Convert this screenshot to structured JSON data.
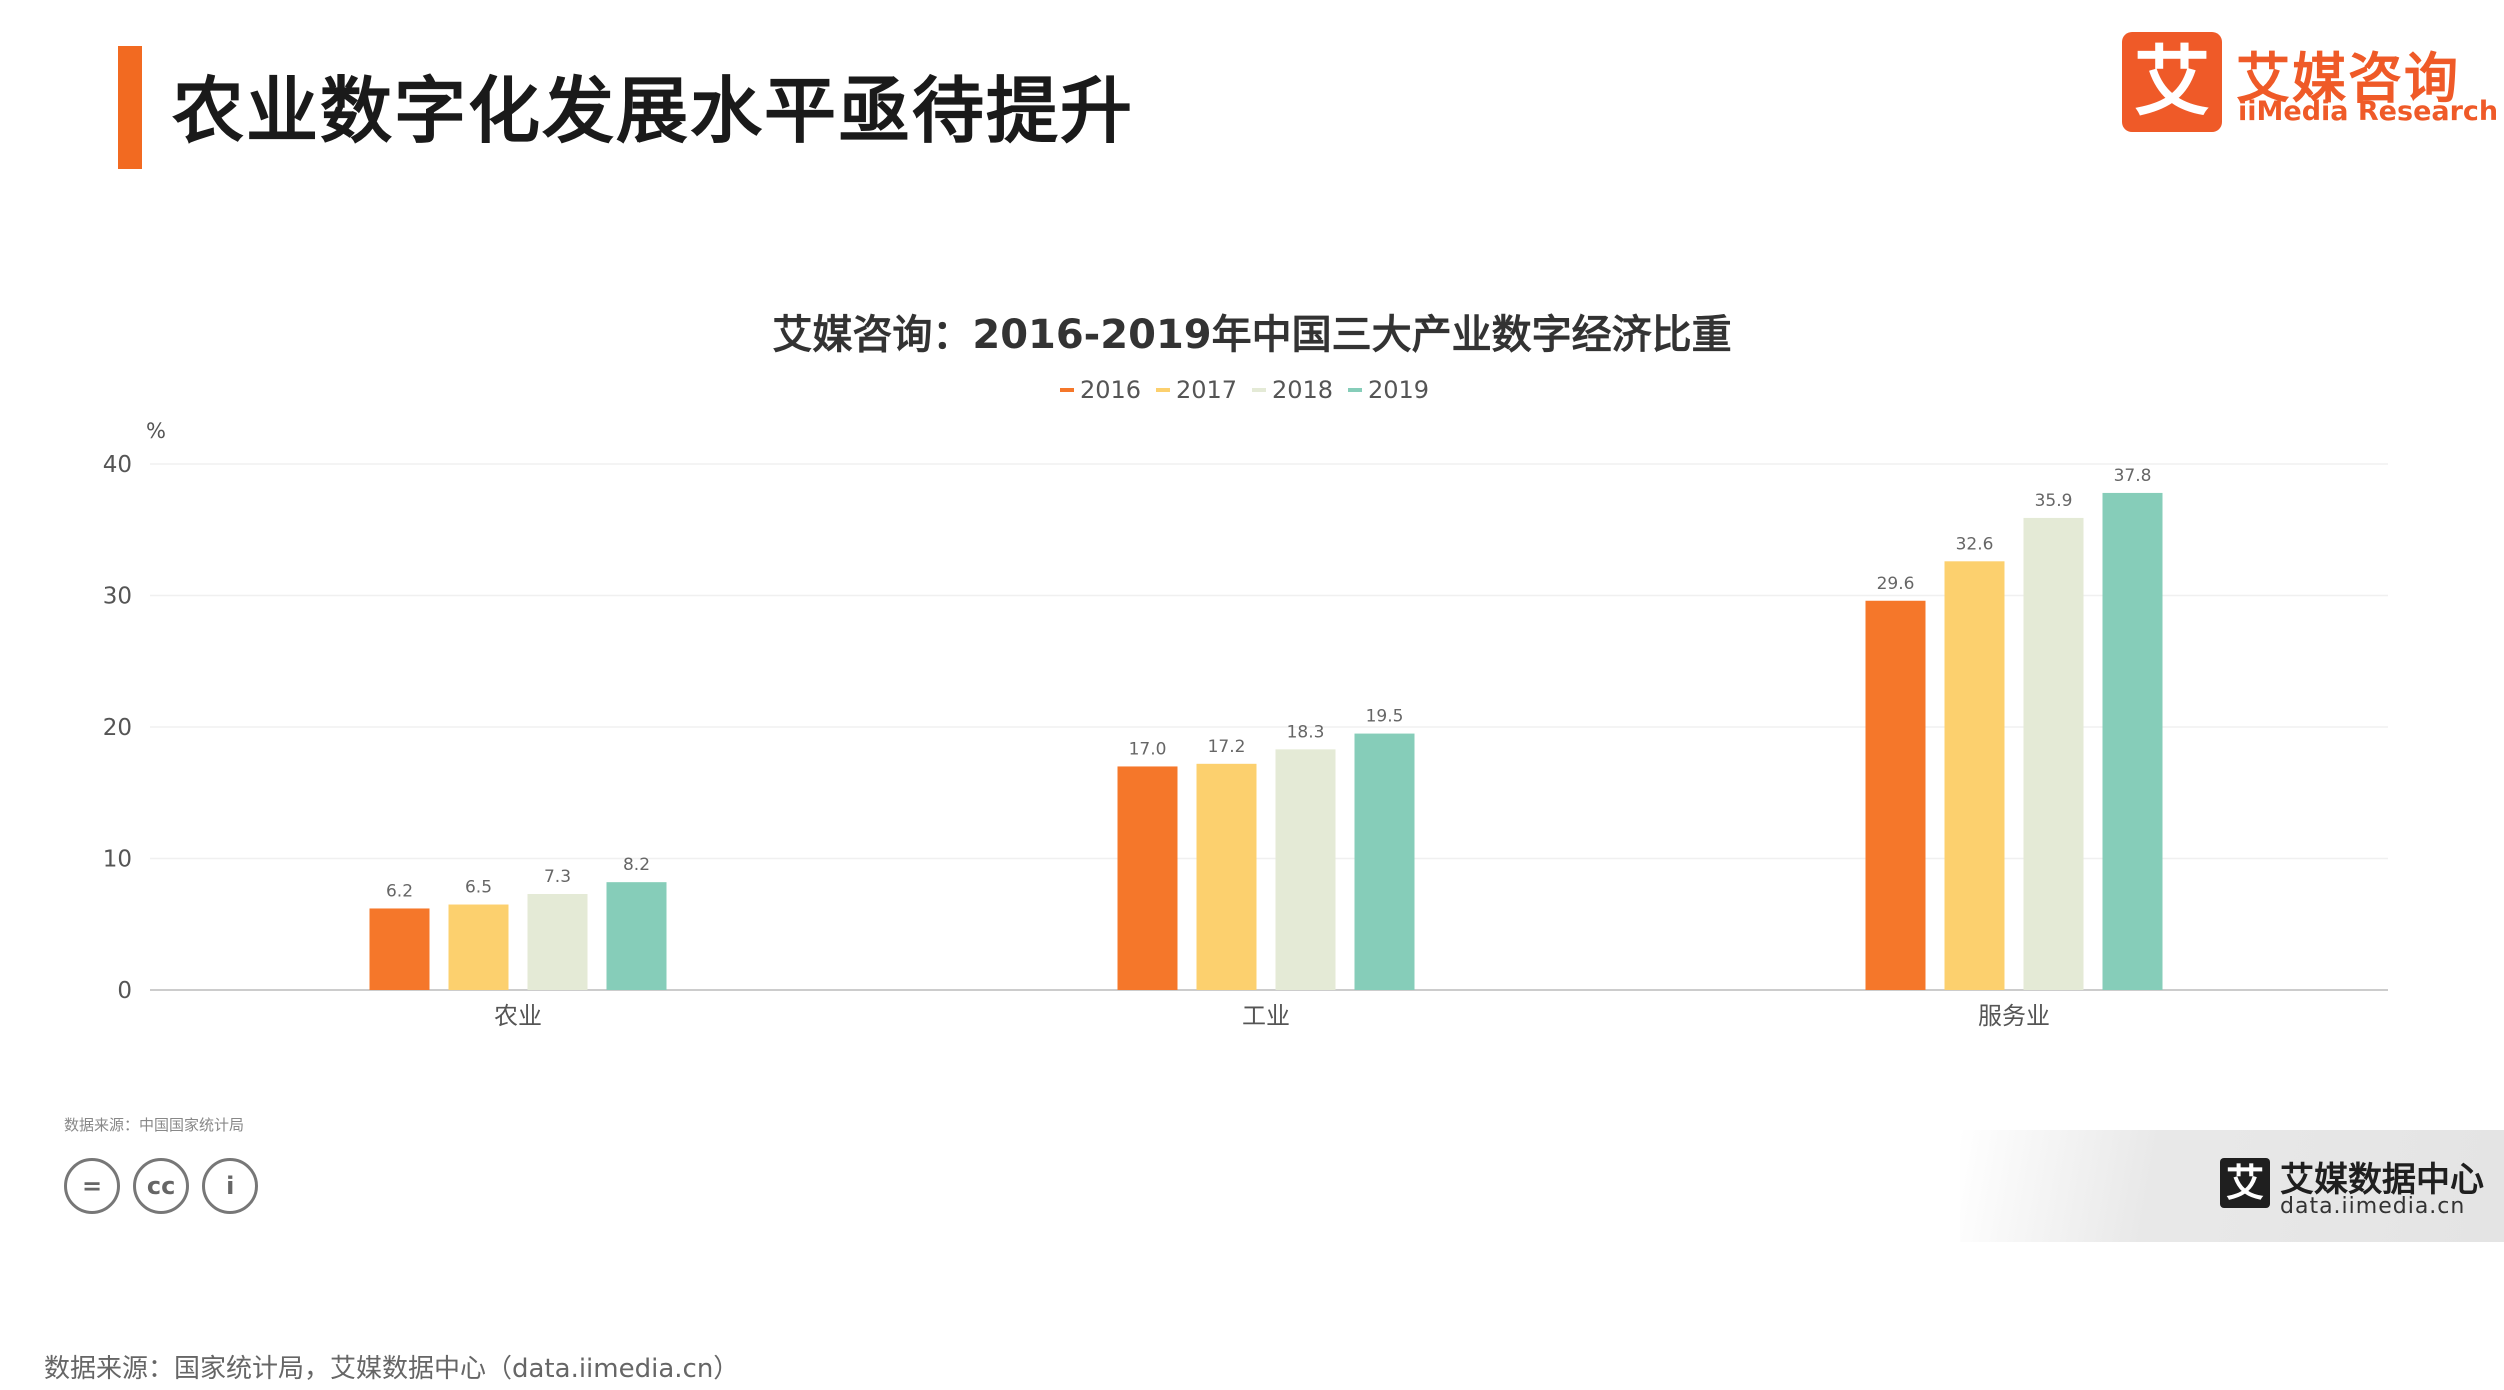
{
  "header": {
    "title": "农业数字化发展水平亟待提升",
    "logo_cn": "艾媒咨询",
    "logo_en": "iiMedia Research",
    "logo_mark": "艾"
  },
  "chart_data": {
    "type": "bar",
    "title": "艾媒咨询：2016-2019年中国三大产业数字经济比重",
    "ylabel": "%",
    "xlabel": "",
    "ylim": [
      0,
      40
    ],
    "yticks": [
      0,
      10,
      20,
      30,
      40
    ],
    "categories": [
      "农业",
      "工业",
      "服务业"
    ],
    "legend_position": "top-center",
    "grid": true,
    "series": [
      {
        "name": "2016",
        "color": "#f5772a",
        "values": [
          6.2,
          17.0,
          29.6
        ]
      },
      {
        "name": "2017",
        "color": "#fcd06e",
        "values": [
          6.5,
          17.2,
          32.6
        ]
      },
      {
        "name": "2018",
        "color": "#e4ead6",
        "values": [
          7.3,
          18.3,
          35.9
        ]
      },
      {
        "name": "2019",
        "color": "#86cdb9",
        "values": [
          8.2,
          19.5,
          37.8
        ]
      }
    ]
  },
  "source_small": "数据来源：中国国家统计局",
  "cc_icons": [
    "=",
    "cc",
    "i"
  ],
  "watermark": {
    "mark": "艾",
    "cn": "艾媒数据中心",
    "en": "data.iimedia.cn"
  },
  "footer": {
    "source": "数据来源：国家统计局，艾媒数据中心（data.iimedia.cn）"
  }
}
